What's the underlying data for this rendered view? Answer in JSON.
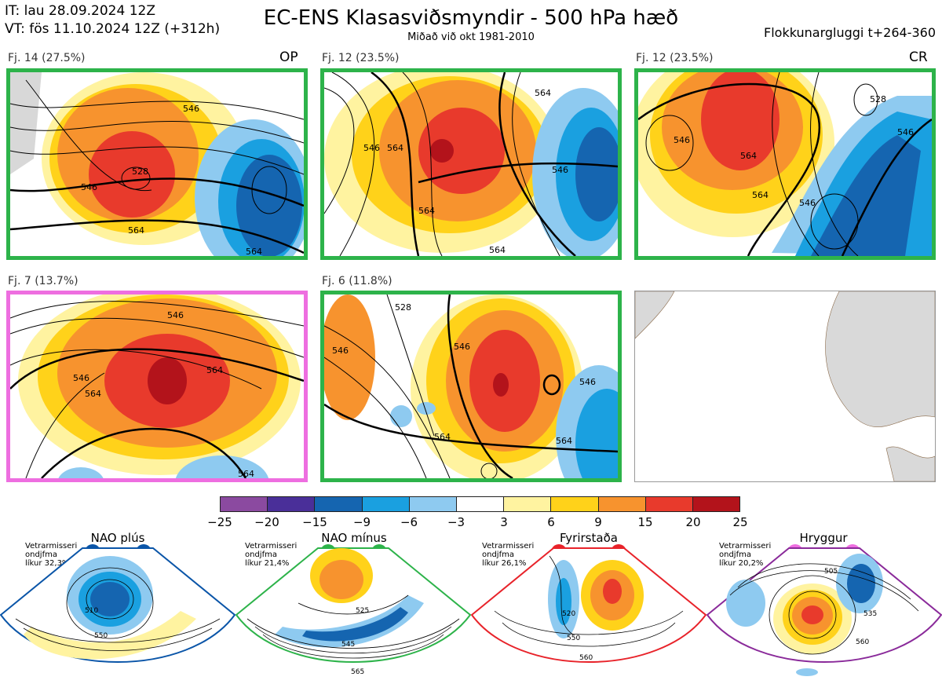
{
  "header": {
    "it_line": "IT: lau 28.09.2024 12Z",
    "vt_line": "VT: fös 11.10.2024 12Z  (+312h)",
    "title": "EC-ENS Klasasviðsmyndir - 500 hPa hæð",
    "subtitle": "Miðað við okt 1981-2010",
    "window": "Flokkunargluggi t+264-360"
  },
  "panels": [
    {
      "label": "Fj. 14 (27.5%)",
      "tag": "OP",
      "border_color": "#2db34a",
      "contours": [
        "528",
        "546",
        "564",
        "564",
        "546"
      ]
    },
    {
      "label": "Fj. 12 (23.5%)",
      "tag": "",
      "border_color": "#2db34a",
      "contours": [
        "546",
        "564",
        "546",
        "564",
        "564",
        "564"
      ]
    },
    {
      "label": "Fj. 12 (23.5%)",
      "tag": "CR",
      "border_color": "#2db34a",
      "contours": [
        "528",
        "546",
        "564",
        "546",
        "564",
        "546"
      ]
    },
    {
      "label": "Fj. 7 (13.7%)",
      "tag": "",
      "border_color": "#ee6ee0",
      "contours": [
        "546",
        "564",
        "546",
        "564",
        "564"
      ]
    },
    {
      "label": "Fj. 6 (11.8%)",
      "tag": "",
      "border_color": "#2db34a",
      "contours": [
        "528",
        "546",
        "546",
        "546",
        "564",
        "564"
      ]
    },
    {
      "label": "",
      "tag": "",
      "border_color": "#999999",
      "contours": []
    }
  ],
  "colorbar": {
    "colors": [
      "#8b4aa0",
      "#4a2f99",
      "#1565b0",
      "#1aa0e0",
      "#8ecaf0",
      "#ffffff",
      "#fff3a0",
      "#ffd21a",
      "#f7932e",
      "#e83a2c",
      "#b3131b"
    ],
    "ticks": [
      "−25",
      "−20",
      "−15",
      "−9",
      "−6",
      "−3",
      "3",
      "6",
      "9",
      "15",
      "20",
      "25"
    ]
  },
  "regimes": [
    {
      "name": "NAO plús",
      "color": "#0a55a8",
      "info": [
        "Vetrarmisseri",
        "ondjfma",
        "líkur 32,3%"
      ],
      "contours": [
        "510",
        "550"
      ]
    },
    {
      "name": "NAO mínus",
      "color": "#2db34a",
      "info": [
        "Vetrarmisseri",
        "ondjfma",
        "líkur 21,4%"
      ],
      "contours": [
        "525",
        "545",
        "565"
      ]
    },
    {
      "name": "Fyrirstaða",
      "color": "#e8232a",
      "info": [
        "Vetrarmisseri",
        "ondjfma",
        "líkur 26,1%"
      ],
      "contours": [
        "520",
        "550",
        "560"
      ]
    },
    {
      "name": "Hryggur",
      "color": "#ee6ee0",
      "info": [
        "Vetrarmisseri",
        "ondjfma",
        "líkur 20,2%"
      ],
      "contours": [
        "505",
        "535",
        "560"
      ]
    }
  ],
  "icons": {
    "cluster_dot": "cluster-indicator-dot"
  }
}
